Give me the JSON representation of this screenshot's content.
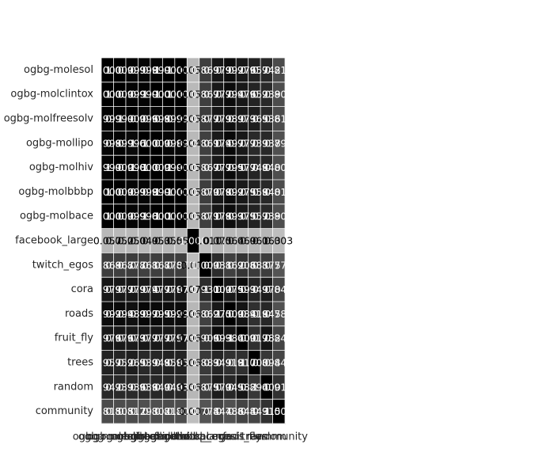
{
  "chart_data": {
    "type": "heatmap",
    "title": "",
    "xlabel": "",
    "ylabel": "",
    "colormap": "gray",
    "vrange": [
      -0.011,
      1.0
    ],
    "grid": true,
    "rows": [
      "ogbg-molesol",
      "ogbg-molclintox",
      "ogbg-molfreesolv",
      "ogbg-mollipo",
      "ogbg-molhiv",
      "ogbg-molbbbp",
      "ogbg-molbace",
      "facebook_large",
      "twitch_egos",
      "cora",
      "roads",
      "fruit_fly",
      "trees",
      "random",
      "community"
    ],
    "columns": [
      "ogbg-molesol",
      "ogbg-molclintox",
      "ogbg-molfreesolv",
      "ogbg-mollipo",
      "ogbg-molhiv",
      "ogbg-molbbbp",
      "ogbg-molbace",
      "facebook_large",
      "twitch_egos",
      "cora",
      "roads",
      "fruit_fly",
      "trees",
      "random",
      "community"
    ],
    "values": [
      [
        1.0,
        1.0,
        0.999,
        0.998,
        0.999,
        1.0,
        1.0,
        0.057,
        0.869,
        0.979,
        0.992,
        0.976,
        0.957,
        0.942,
        0.815
      ],
      [
        1.0,
        1.0,
        0.999,
        0.999,
        1.0,
        1.0,
        1.0,
        0.052,
        0.867,
        0.977,
        0.994,
        0.976,
        0.952,
        0.939,
        0.805
      ],
      [
        0.999,
        0.999,
        1.0,
        0.996,
        0.998,
        0.999,
        0.999,
        0.05,
        0.877,
        0.979,
        0.989,
        0.973,
        0.965,
        0.936,
        0.812
      ],
      [
        0.998,
        0.999,
        0.996,
        1.0,
        1.0,
        0.998,
        0.998,
        0.049,
        0.861,
        0.974,
        0.997,
        0.977,
        0.939,
        0.938,
        0.793
      ],
      [
        0.999,
        1.0,
        0.998,
        1.0,
        1.0,
        0.999,
        1.0,
        0.053,
        0.867,
        0.977,
        0.995,
        0.977,
        0.948,
        0.94,
        0.802
      ],
      [
        1.0,
        1.0,
        0.999,
        0.998,
        0.999,
        1.0,
        1.0,
        0.055,
        0.87,
        0.978,
        0.992,
        0.975,
        0.958,
        0.94,
        0.812
      ],
      [
        1.0,
        1.0,
        0.999,
        0.998,
        1.0,
        1.0,
        1.0,
        0.053,
        0.871,
        0.978,
        0.993,
        0.975,
        0.957,
        0.939,
        0.808
      ],
      [
        0.057,
        0.052,
        0.05,
        0.049,
        0.053,
        0.055,
        0.053,
        1.0,
        -0.011,
        0.075,
        0.064,
        0.069,
        0.061,
        0.063,
        0.003
      ],
      [
        0.869,
        0.867,
        0.877,
        0.861,
        0.867,
        0.87,
        0.871,
        -0.011,
        1.0,
        0.931,
        0.862,
        0.906,
        0.883,
        0.875,
        0.774
      ],
      [
        0.979,
        0.977,
        0.979,
        0.974,
        0.977,
        0.978,
        0.978,
        0.075,
        0.931,
        1.0,
        0.975,
        0.993,
        0.949,
        0.97,
        0.844
      ],
      [
        0.992,
        0.994,
        0.989,
        0.997,
        0.995,
        0.992,
        0.993,
        0.064,
        0.862,
        0.975,
        1.0,
        0.984,
        0.918,
        0.945,
        0.786
      ],
      [
        0.976,
        0.976,
        0.973,
        0.977,
        0.977,
        0.975,
        0.975,
        0.069,
        0.906,
        0.993,
        0.984,
        1.0,
        0.917,
        0.982,
        0.844
      ],
      [
        0.957,
        0.952,
        0.965,
        0.939,
        0.948,
        0.958,
        0.957,
        0.061,
        0.883,
        0.949,
        0.918,
        0.917,
        1.0,
        0.894,
        0.843
      ],
      [
        0.942,
        0.939,
        0.936,
        0.938,
        0.94,
        0.94,
        0.939,
        0.063,
        0.875,
        0.97,
        0.945,
        0.982,
        0.894,
        1.0,
        0.915
      ],
      [
        0.815,
        0.805,
        0.812,
        0.793,
        0.802,
        0.812,
        0.808,
        0.003,
        0.774,
        0.844,
        0.786,
        0.844,
        0.843,
        0.915,
        1.0
      ]
    ]
  }
}
